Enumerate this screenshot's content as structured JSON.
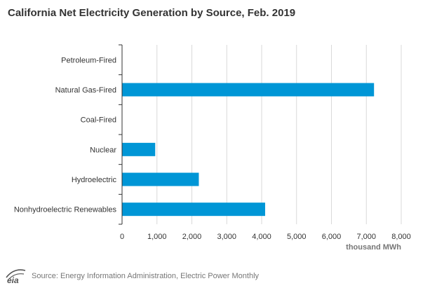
{
  "title": "California Net Electricity Generation by Source, Feb. 2019",
  "source": "Source: Energy Information Administration, Electric Power Monthly",
  "logo_text": "eia",
  "colors": {
    "bar": "#0096d6",
    "grid": "#d9d9d9",
    "axis": "#333333",
    "text": "#333333",
    "source": "#777777"
  },
  "chart_data": {
    "type": "bar",
    "orientation": "horizontal",
    "title": "California Net Electricity Generation by Source, Feb. 2019",
    "categories": [
      "Petroleum-Fired",
      "Natural Gas-Fired",
      "Coal-Fired",
      "Nuclear",
      "Hydroelectric",
      "Nonhydroelectric Renewables"
    ],
    "values": [
      0,
      7220,
      0,
      950,
      2200,
      4100
    ],
    "xlabel": "thousand MWh",
    "ylabel": "",
    "xlim": [
      0,
      8000
    ],
    "xticks": [
      0,
      1000,
      2000,
      3000,
      4000,
      5000,
      6000,
      7000,
      8000
    ],
    "xtick_labels": [
      "0",
      "1,000",
      "2,000",
      "3,000",
      "4,000",
      "5,000",
      "6,000",
      "7,000",
      "8,000"
    ],
    "grid": true
  }
}
